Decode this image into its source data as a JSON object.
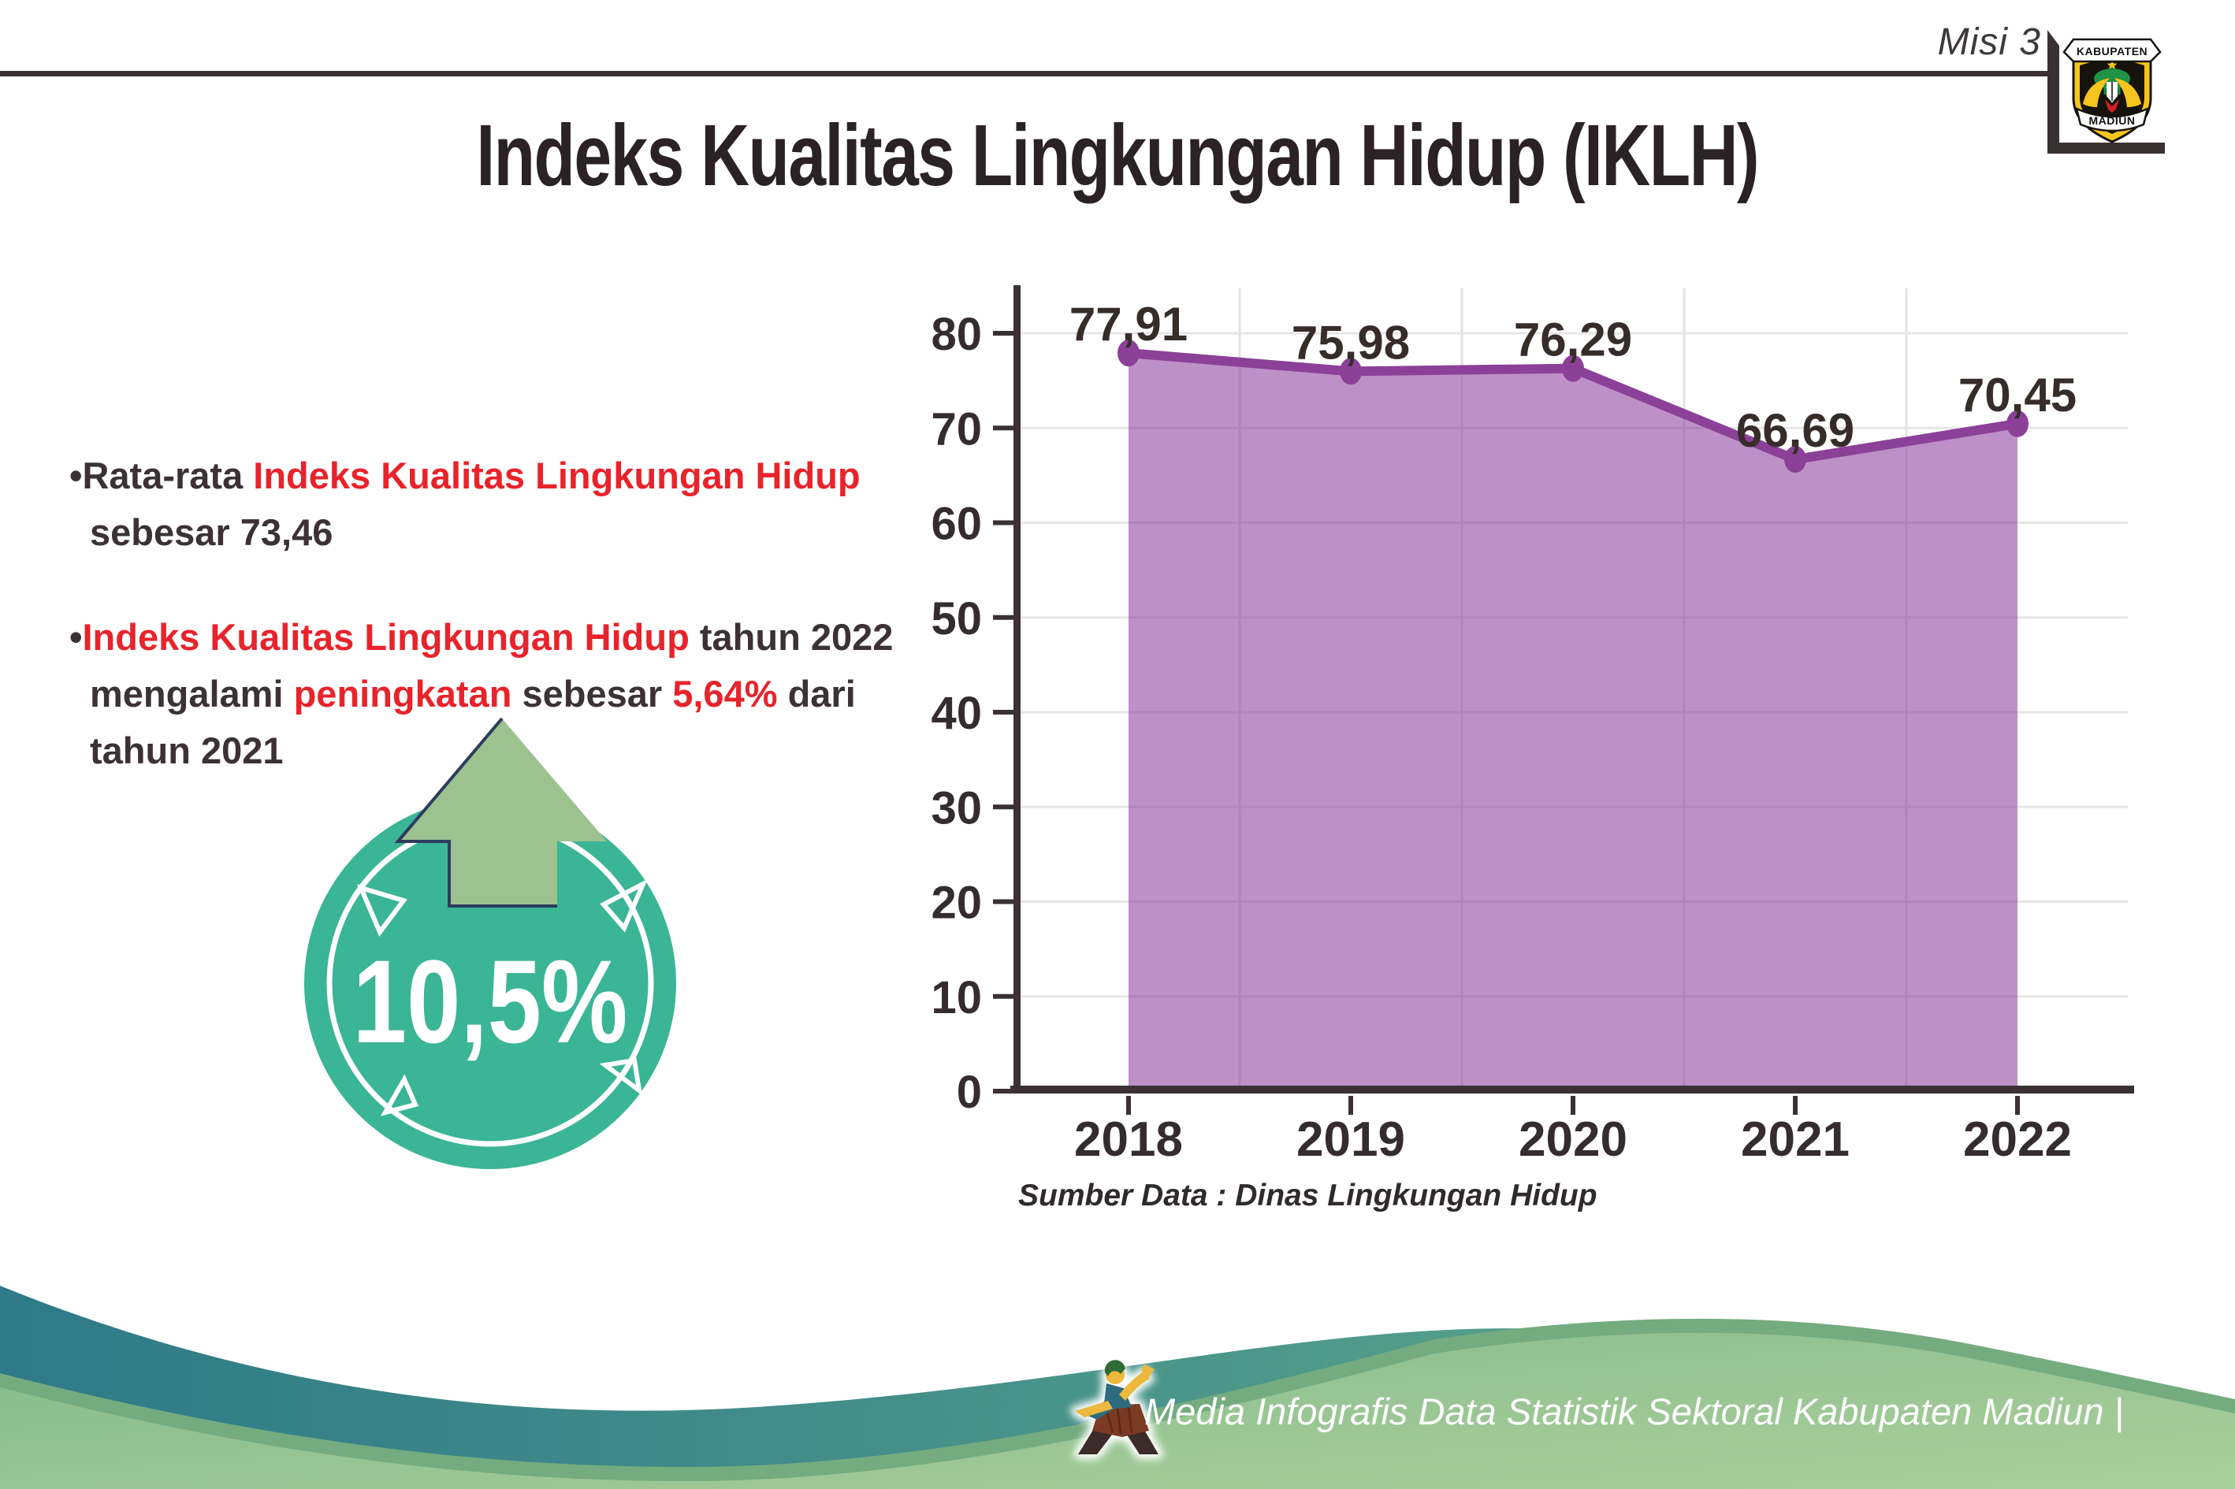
{
  "header": {
    "misi": "Misi 3",
    "logo_top": "KABUPATEN",
    "logo_bottom": "MADIUN"
  },
  "title": "Indeks Kualitas Lingkungan Hidup (IKLH)",
  "bullets": {
    "marker": "•",
    "b1": {
      "l1_dark": "Rata-rata ",
      "l1_red": "Indeks Kualitas Lingkungan Hidup",
      "l2_dark": "sebesar 73,46"
    },
    "b2": {
      "l1_red": "Indeks Kualitas Lingkungan Hidup",
      "l1_dark": " tahun 2022",
      "l2_d1": "mengalami ",
      "l2_r1": "peningkatan ",
      "l2_d2": "sebesar ",
      "l2_r2": "5,64%",
      "l2_d3": " dari",
      "l3_dark": "tahun 2021"
    }
  },
  "badge": {
    "value": "10,5%",
    "circle_color": "#3ab595",
    "arrow_color": "#9cc28f"
  },
  "chart_data": {
    "type": "area",
    "categories": [
      "2018",
      "2019",
      "2020",
      "2021",
      "2022"
    ],
    "values": [
      77.91,
      75.98,
      76.29,
      66.69,
      70.45
    ],
    "value_labels": [
      "77,91",
      "75,98",
      "76,29",
      "66,69",
      "70,45"
    ],
    "yticks": [
      0,
      10,
      20,
      30,
      40,
      50,
      60,
      70,
      80
    ],
    "ylim": [
      0,
      85
    ],
    "grid": true,
    "legend": false,
    "title": "",
    "xlabel": "",
    "ylabel": "",
    "line_color": "#8b4197",
    "fill_color": "#8e3f9f"
  },
  "source_note": "Sumber Data : Dinas Lingkungan Hidup",
  "footer": {
    "credit": "Media Infografis Data Statistik Sektoral Kabupaten Madiun |"
  },
  "colors": {
    "accent_red": "#e8232b",
    "dark_text": "#3c3133",
    "rule_dark": "#3a3132",
    "teal_wave_start": "#2e7a88",
    "teal_wave_end": "#68aa8c",
    "green_wave_edge": "#74ab7f",
    "green_wave_start": "#83ba8b",
    "green_wave_end": "#abcf9b"
  }
}
